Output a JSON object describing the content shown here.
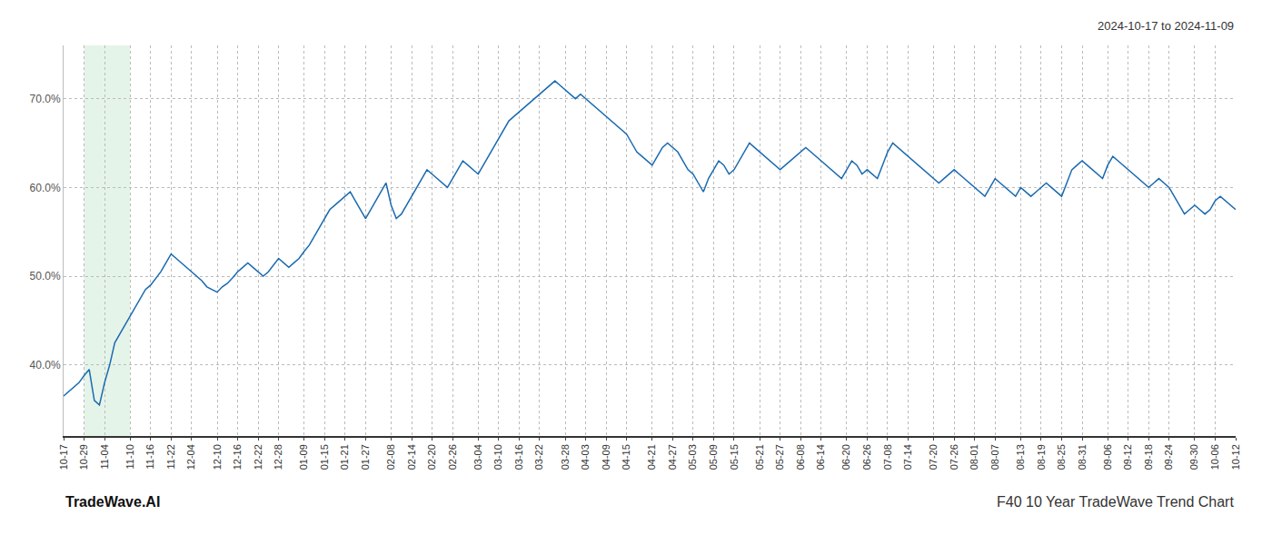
{
  "chart_data": {
    "type": "line",
    "title": "F40 10 Year TradeWave Trend Chart",
    "subtitle": "2024-10-17 to 2024-11-09",
    "annotations": [
      "TradeWave.AI"
    ],
    "color": "#1a6ab0",
    "grid": true,
    "ylim": [
      32,
      76
    ],
    "yticks": [
      {
        "value": 40.0,
        "label": "40.0%"
      },
      {
        "value": 50.0,
        "label": "50.0%"
      },
      {
        "value": 60.0,
        "label": "60.0%"
      },
      {
        "value": 70.0,
        "label": "70.0%"
      }
    ],
    "shade": {
      "from": "10-29",
      "to": "11-10",
      "color": "#d4edda"
    },
    "categories": [
      "10-17",
      null,
      null,
      null,
      "10-29",
      null,
      null,
      null,
      "11-04",
      null,
      null,
      null,
      null,
      "11-10",
      null,
      null,
      null,
      "11-16",
      null,
      null,
      null,
      "11-22",
      null,
      null,
      null,
      "12-04",
      null,
      null,
      null,
      null,
      "12-10",
      null,
      null,
      null,
      "12-16",
      null,
      null,
      null,
      "12-22",
      null,
      null,
      null,
      "12-28",
      null,
      null,
      null,
      null,
      "01-09",
      null,
      null,
      null,
      "01-15",
      null,
      null,
      null,
      "01-21",
      null,
      null,
      null,
      "01-27",
      null,
      null,
      null,
      null,
      "02-08",
      null,
      null,
      null,
      "02-14",
      null,
      null,
      null,
      "02-20",
      null,
      null,
      null,
      "02-26",
      null,
      null,
      null,
      null,
      "03-04",
      null,
      null,
      null,
      "03-10",
      null,
      null,
      null,
      "03-16",
      null,
      null,
      null,
      "03-22",
      null,
      null,
      null,
      null,
      "03-28",
      null,
      null,
      null,
      "04-03",
      null,
      null,
      null,
      "04-09",
      null,
      null,
      null,
      "04-15",
      null,
      null,
      null,
      null,
      "04-21",
      null,
      null,
      null,
      "04-27",
      null,
      null,
      null,
      "05-03",
      null,
      null,
      null,
      "05-09",
      null,
      null,
      null,
      "05-15",
      null,
      null,
      null,
      null,
      "05-21",
      null,
      null,
      null,
      "05-27",
      null,
      null,
      null,
      "06-08",
      null,
      null,
      null,
      "06-14",
      null,
      null,
      null,
      null,
      "06-20",
      null,
      null,
      null,
      "06-26",
      null,
      null,
      null,
      "07-08",
      null,
      null,
      null,
      "07-14",
      null,
      null,
      null,
      null,
      "07-20",
      null,
      null,
      null,
      "07-26",
      null,
      null,
      null,
      "08-01",
      null,
      null,
      null,
      "08-07",
      null,
      null,
      null,
      null,
      "08-13",
      null,
      null,
      null,
      "08-19",
      null,
      null,
      null,
      "08-25",
      null,
      null,
      null,
      "08-31",
      null,
      null,
      null,
      null,
      "09-06",
      null,
      null,
      null,
      "09-12",
      null,
      null,
      null,
      "09-18",
      null,
      null,
      null,
      "09-24",
      null,
      null,
      null,
      null,
      "09-30",
      null,
      null,
      null,
      "10-06",
      null,
      null,
      null,
      "10-12"
    ],
    "values": [
      36.5,
      37.0,
      37.5,
      38.0,
      38.8,
      39.5,
      36.0,
      35.5,
      38.0,
      40.0,
      42.5,
      43.5,
      44.5,
      45.5,
      46.5,
      47.5,
      48.5,
      49.0,
      49.8,
      50.5,
      51.5,
      52.5,
      52.0,
      51.5,
      51.0,
      50.5,
      50.0,
      49.5,
      48.8,
      48.5,
      48.2,
      48.8,
      49.2,
      49.8,
      50.5,
      51.0,
      51.5,
      51.0,
      50.5,
      50.0,
      50.5,
      51.2,
      52.0,
      51.5,
      51.0,
      51.5,
      52.0,
      52.8,
      53.5,
      54.5,
      55.5,
      56.5,
      57.5,
      58.0,
      58.5,
      59.0,
      59.5,
      58.5,
      57.5,
      56.5,
      57.5,
      58.5,
      59.5,
      60.5,
      58.0,
      56.5,
      57.0,
      58.0,
      59.0,
      60.0,
      61.0,
      62.0,
      61.5,
      61.0,
      60.5,
      60.0,
      61.0,
      62.0,
      63.0,
      62.5,
      62.0,
      61.5,
      62.5,
      63.5,
      64.5,
      65.5,
      66.5,
      67.5,
      68.0,
      68.5,
      69.0,
      69.5,
      70.0,
      70.5,
      71.0,
      71.5,
      72.0,
      71.5,
      71.0,
      70.5,
      70.0,
      70.5,
      70.0,
      69.5,
      69.0,
      68.5,
      68.0,
      67.5,
      67.0,
      66.5,
      66.0,
      65.0,
      64.0,
      63.5,
      63.0,
      62.5,
      63.5,
      64.5,
      65.0,
      64.5,
      64.0,
      63.0,
      62.0,
      61.5,
      60.5,
      59.5,
      61.0,
      62.0,
      63.0,
      62.5,
      61.5,
      62.0,
      63.0,
      64.0,
      65.0,
      64.5,
      64.0,
      63.5,
      63.0,
      62.5,
      62.0,
      62.5,
      63.0,
      63.5,
      64.0,
      64.5,
      64.0,
      63.5,
      63.0,
      62.5,
      62.0,
      61.5,
      61.0,
      62.0,
      63.0,
      62.5,
      61.5,
      62.0,
      61.5,
      61.0,
      62.5,
      64.0,
      65.0,
      64.5,
      64.0,
      63.5,
      63.0,
      62.5,
      62.0,
      61.5,
      61.0,
      60.5,
      61.0,
      61.5,
      62.0,
      61.5,
      61.0,
      60.5,
      60.0,
      59.5,
      59.0,
      60.0,
      61.0,
      60.5,
      60.0,
      59.5,
      59.0,
      60.0,
      59.5,
      59.0,
      59.5,
      60.0,
      60.5,
      60.0,
      59.5,
      59.0,
      60.5,
      62.0,
      62.5,
      63.0,
      62.5,
      62.0,
      61.5,
      61.0,
      62.5,
      63.5,
      63.0,
      62.5,
      62.0,
      61.5,
      61.0,
      60.5,
      60.0,
      60.5,
      61.0,
      60.5,
      60.0,
      59.0,
      58.0,
      57.0,
      57.5,
      58.0,
      57.5,
      57.0,
      57.5,
      58.5,
      59.0,
      58.5,
      58.0,
      57.5
    ]
  }
}
